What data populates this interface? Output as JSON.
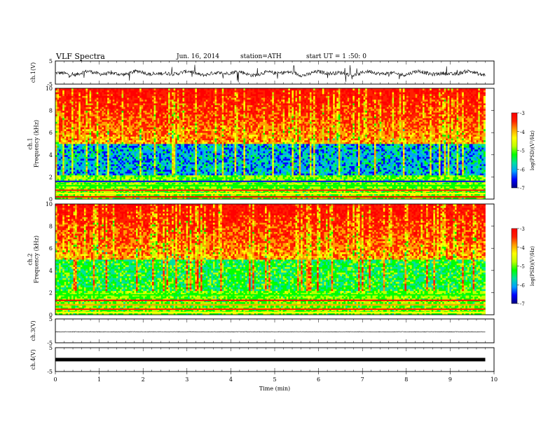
{
  "header": {
    "title": "VLF Spectra",
    "date": "Jun. 16, 2014",
    "station": "station=ATH",
    "start": "start UT = 1 :50: 0"
  },
  "chart_data": {
    "type": "heatmap",
    "xlabel": "Time (min)",
    "xlim": [
      0,
      10
    ],
    "x_ticks": [
      "0",
      "1",
      "2",
      "3",
      "4",
      "5",
      "6",
      "7",
      "8",
      "9",
      "10"
    ],
    "data_end_min": 9.8,
    "panels": [
      {
        "kind": "waveform",
        "ylabel": "ch.1(V)",
        "ylim": [
          -5,
          5
        ],
        "y_ticks": [
          "5",
          "-5"
        ],
        "level": -0.3,
        "noise": "high"
      },
      {
        "kind": "spectrogram",
        "ylabel": "ch.1\nFrequency (kHz)",
        "ylim": [
          0,
          10
        ],
        "y_ticks": [
          "0",
          "2",
          "4",
          "6",
          "8",
          "10"
        ],
        "colorbar": {
          "label": "log(PSD)(V²/Hz)",
          "range": [
            -7,
            -3
          ],
          "ticks": [
            "-3",
            "-4",
            "-5",
            "-6",
            "-7"
          ]
        }
      },
      {
        "kind": "spectrogram",
        "ylabel": "ch.2\nFrequency (kHz)",
        "ylim": [
          0,
          10
        ],
        "y_ticks": [
          "0",
          "2",
          "4",
          "6",
          "8",
          "10"
        ],
        "colorbar": {
          "label": "log(PSD)(V²/Hz)",
          "range": [
            -7,
            -3
          ],
          "ticks": [
            "-3",
            "-4",
            "-5",
            "-6",
            "-7"
          ]
        }
      },
      {
        "kind": "waveform",
        "ylabel": "ch.3(V)",
        "ylim": [
          -5,
          5
        ],
        "y_ticks": [
          "5",
          "-5"
        ],
        "level": -0.3,
        "noise": "low"
      },
      {
        "kind": "waveform",
        "ylabel": "ch.4(V)",
        "ylim": [
          -5,
          5
        ],
        "y_ticks": [
          "5",
          "-5"
        ],
        "level": 0.0,
        "noise": "thick"
      }
    ],
    "colorscale": [
      "#000080",
      "#0000ff",
      "#00a0ff",
      "#00e0a0",
      "#00ff00",
      "#c0ff00",
      "#ffff00",
      "#ffa000",
      "#ff2000",
      "#ff0000"
    ]
  }
}
